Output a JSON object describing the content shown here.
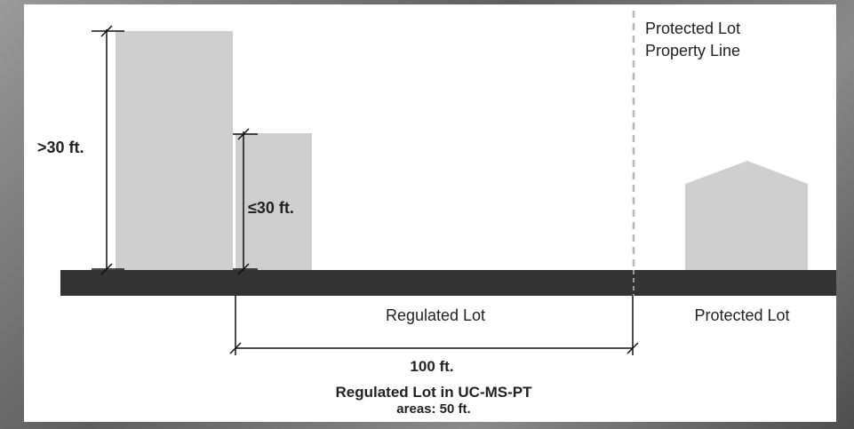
{
  "labels": {
    "tall_height": ">30 ft.",
    "short_height": "≤30 ft.",
    "property_line_1": "Protected Lot",
    "property_line_2": "Property Line",
    "regulated_lot": "Regulated Lot",
    "protected_lot": "Protected Lot",
    "distance": "100 ft.",
    "note_line_1": "Regulated Lot in UC-MS-PT",
    "note_line_2": "areas: 50 ft."
  }
}
